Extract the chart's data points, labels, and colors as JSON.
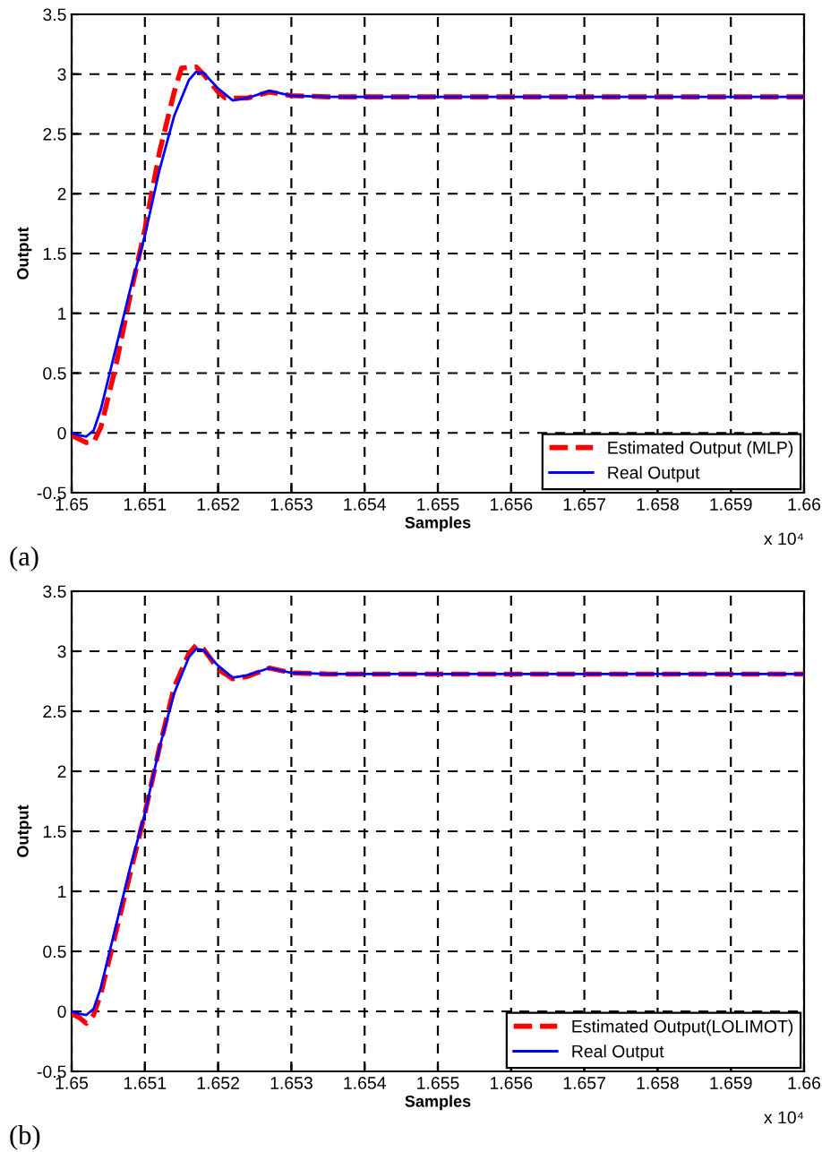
{
  "chart_data": [
    {
      "type": "line",
      "xlabel": "Samples",
      "ylabel": "Output",
      "xlim": [
        1.65,
        1.66
      ],
      "ylim": [
        -0.5,
        3.5
      ],
      "xticks": [
        1.65,
        1.651,
        1.652,
        1.653,
        1.654,
        1.655,
        1.656,
        1.657,
        1.658,
        1.659,
        1.66
      ],
      "yticks": [
        -0.5,
        0,
        0.5,
        1,
        1.5,
        2,
        2.5,
        3,
        3.5
      ],
      "grid": true,
      "legend": "bottom right",
      "annotations": [
        "x 10⁴",
        "(a)"
      ],
      "series": [
        {
          "name": "Estimated Output (MLP)",
          "color": "#ff0000",
          "line_style": "dashed",
          "x": [
            1.65,
            1.6501,
            1.6502,
            1.6503,
            1.6504,
            1.6506,
            1.6508,
            1.651,
            1.6512,
            1.6514,
            1.6515,
            1.6517,
            1.6518,
            1.652,
            1.6521,
            1.6524,
            1.6527,
            1.653,
            1.6535,
            1.654,
            1.655,
            1.656,
            1.657,
            1.658,
            1.659,
            1.66
          ],
          "values": [
            -0.02,
            -0.05,
            -0.08,
            -0.08,
            0.05,
            0.55,
            1.15,
            1.7,
            2.35,
            2.85,
            3.05,
            3.06,
            3.0,
            2.85,
            2.8,
            2.8,
            2.85,
            2.82,
            2.81,
            2.81,
            2.81,
            2.81,
            2.81,
            2.81,
            2.81,
            2.81
          ]
        },
        {
          "name": "Real Output",
          "color": "#0000ff",
          "line_style": "solid",
          "x": [
            1.65,
            1.6501,
            1.6502,
            1.6503,
            1.6504,
            1.6506,
            1.6508,
            1.651,
            1.6512,
            1.6514,
            1.6516,
            1.6517,
            1.6518,
            1.652,
            1.6522,
            1.6524,
            1.6527,
            1.653,
            1.6535,
            1.654,
            1.655,
            1.656,
            1.657,
            1.658,
            1.659,
            1.66
          ],
          "values": [
            0,
            -0.02,
            -0.03,
            0.02,
            0.2,
            0.7,
            1.2,
            1.65,
            2.2,
            2.65,
            2.95,
            3.02,
            3.01,
            2.88,
            2.78,
            2.8,
            2.86,
            2.82,
            2.81,
            2.81,
            2.81,
            2.81,
            2.81,
            2.81,
            2.81,
            2.81
          ]
        }
      ]
    },
    {
      "type": "line",
      "xlabel": "Samples",
      "ylabel": "Output",
      "xlim": [
        1.65,
        1.66
      ],
      "ylim": [
        -0.5,
        3.5
      ],
      "xticks": [
        1.65,
        1.651,
        1.652,
        1.653,
        1.654,
        1.655,
        1.656,
        1.657,
        1.658,
        1.659,
        1.66
      ],
      "yticks": [
        -0.5,
        0,
        0.5,
        1,
        1.5,
        2,
        2.5,
        3,
        3.5
      ],
      "grid": true,
      "legend": "bottom right",
      "annotations": [
        "x 10⁴",
        "(b)"
      ],
      "series": [
        {
          "name": "Estimated Output(LOLIMOT)",
          "color": "#ff0000",
          "line_style": "dashed",
          "x": [
            1.65,
            1.6501,
            1.6502,
            1.6503,
            1.6504,
            1.6506,
            1.6508,
            1.651,
            1.6512,
            1.6514,
            1.6516,
            1.6517,
            1.6518,
            1.652,
            1.6522,
            1.6524,
            1.6527,
            1.653,
            1.6535,
            1.654,
            1.655,
            1.656,
            1.657,
            1.658,
            1.659,
            1.66
          ],
          "values": [
            -0.02,
            -0.05,
            -0.1,
            -0.03,
            0.15,
            0.65,
            1.15,
            1.65,
            2.2,
            2.7,
            2.98,
            3.05,
            3.02,
            2.85,
            2.77,
            2.79,
            2.86,
            2.82,
            2.81,
            2.81,
            2.81,
            2.81,
            2.81,
            2.81,
            2.81,
            2.81
          ]
        },
        {
          "name": "Real Output",
          "color": "#0000ff",
          "line_style": "solid",
          "x": [
            1.65,
            1.6501,
            1.6502,
            1.6503,
            1.6504,
            1.6506,
            1.6508,
            1.651,
            1.6512,
            1.6514,
            1.6516,
            1.6517,
            1.6518,
            1.652,
            1.6522,
            1.6524,
            1.6527,
            1.653,
            1.6535,
            1.654,
            1.655,
            1.656,
            1.657,
            1.658,
            1.659,
            1.66
          ],
          "values": [
            0,
            -0.02,
            -0.03,
            0.02,
            0.2,
            0.7,
            1.2,
            1.65,
            2.2,
            2.65,
            2.95,
            3.02,
            3.01,
            2.88,
            2.78,
            2.8,
            2.86,
            2.82,
            2.81,
            2.81,
            2.81,
            2.81,
            2.81,
            2.81,
            2.81,
            2.81
          ]
        }
      ]
    }
  ]
}
